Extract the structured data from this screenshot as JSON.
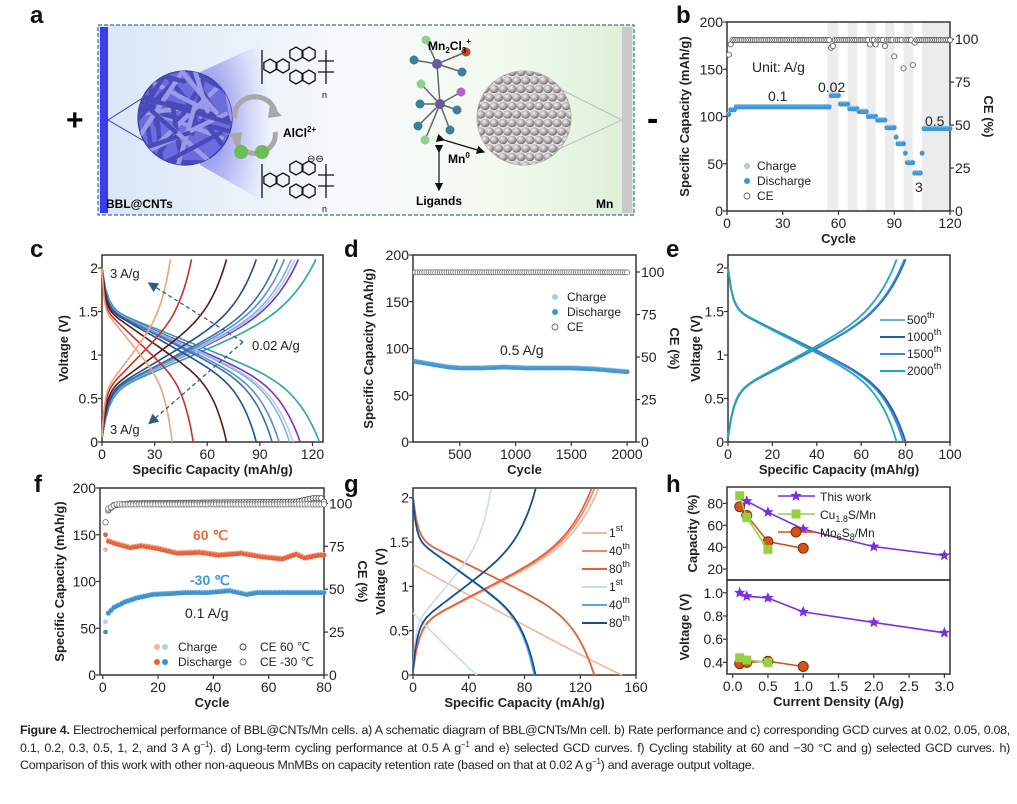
{
  "panel_labels": {
    "a": "a",
    "b": "b",
    "c": "c",
    "d": "d",
    "e": "e",
    "f": "f",
    "g": "g",
    "h": "h"
  },
  "schematic": {
    "plus": "+",
    "minus": "-",
    "cathode_label": "BBL@CNTs",
    "anode_label": "Mn",
    "ion_label": "AlCl",
    "ion_sup": "2+",
    "polymer_repeat": "n",
    "polymer_charge": "⊖⊖",
    "complex_label": {
      "a": "Mn",
      "b": "2",
      "c": "Cl",
      "d": "3",
      "e": "+"
    },
    "mn0_label": "Mn",
    "mn0_sup": "0",
    "ligands_label": "Ligands",
    "colors": {
      "cathode_bar": "#3b3bf0",
      "nanotube": "#5a5ad6",
      "ion": "#6cbc58",
      "anode_bar": "#c9c9c9"
    }
  },
  "chart_data": [
    {
      "panel": "b",
      "type": "scatter",
      "xlabel": "Cycle",
      "ylabel": "Specific Capacity (mAh/g)",
      "y2label": "CE (%)",
      "xlim": [
        0,
        120
      ],
      "ylim": [
        0,
        200
      ],
      "y2lim": [
        0,
        110
      ],
      "xticks": [
        0,
        30,
        60,
        90,
        120
      ],
      "yticks": [
        0,
        50,
        100,
        150,
        200
      ],
      "y2ticks": [
        0,
        25,
        50,
        75,
        100
      ],
      "shaded_cycle_ranges": [
        [
          54,
          60
        ],
        [
          65,
          70
        ],
        [
          75,
          80
        ],
        [
          85,
          90
        ],
        [
          95,
          100
        ],
        [
          105,
          120
        ]
      ],
      "capacity_segments": [
        [
          1,
          1,
          102
        ],
        [
          2,
          4,
          107
        ],
        [
          5,
          55,
          110
        ],
        [
          56,
          60,
          122
        ],
        [
          61,
          65,
          113
        ],
        [
          66,
          70,
          108
        ],
        [
          71,
          75,
          105
        ],
        [
          76,
          80,
          100
        ],
        [
          81,
          85,
          96
        ],
        [
          86,
          90,
          88
        ],
        [
          91,
          91,
          78
        ],
        [
          92,
          95,
          71
        ],
        [
          96,
          96,
          61
        ],
        [
          97,
          100,
          51
        ],
        [
          101,
          104,
          40
        ],
        [
          105,
          105,
          61
        ],
        [
          106,
          120,
          87
        ]
      ],
      "ce_default": 99.5,
      "ce_outliers": [
        [
          1,
          91
        ],
        [
          2,
          97
        ],
        [
          56,
          95
        ],
        [
          57,
          96
        ],
        [
          77,
          97
        ],
        [
          80,
          97
        ],
        [
          85,
          96
        ],
        [
          90,
          90
        ],
        [
          95,
          83
        ],
        [
          100,
          85
        ],
        [
          101,
          98
        ]
      ],
      "series": [
        {
          "name": "Charge",
          "color": "#a9cdee"
        },
        {
          "name": "Discharge",
          "color": "#3f97d4"
        },
        {
          "name": "CE",
          "color": "#555555"
        }
      ],
      "annotations": [
        "Unit: A/g",
        "0.1",
        "0.02",
        "0.5",
        "3"
      ]
    },
    {
      "panel": "c",
      "type": "line",
      "xlabel": "Specific Capacity (mAh/g)",
      "ylabel": "Voltage (V)",
      "xlim": [
        0,
        126
      ],
      "ylim": [
        0,
        2.15
      ],
      "xticks": [
        0,
        30,
        60,
        90,
        120
      ],
      "yticks": [
        0,
        0.5,
        1.0,
        1.5,
        2.0
      ],
      "curves": [
        {
          "rate": "0.02",
          "charge_max": 122,
          "discharge_max": 124,
          "color": "#2aa79e"
        },
        {
          "rate": "0.05",
          "charge_max": 112,
          "discharge_max": 113,
          "color": "#7b2fd6"
        },
        {
          "rate": "0.08",
          "charge_max": 110,
          "discharge_max": 109,
          "color": "#b3d0ea"
        },
        {
          "rate": "0.1",
          "charge_max": 108,
          "discharge_max": 107,
          "color": "#86b2da"
        },
        {
          "rate": "0.2",
          "charge_max": 104,
          "discharge_max": 101,
          "color": "#5b8fc6"
        },
        {
          "rate": "0.3",
          "charge_max": 100,
          "discharge_max": 97,
          "color": "#3a70b2"
        },
        {
          "rate": "0.5",
          "charge_max": 88,
          "discharge_max": 88,
          "color": "#1f4f8f"
        },
        {
          "rate": "1",
          "charge_max": 71,
          "discharge_max": 71,
          "color": "#5c1818"
        },
        {
          "rate": "2",
          "charge_max": 51,
          "discharge_max": 52,
          "color": "#c8302e"
        },
        {
          "rate": "3",
          "charge_max": 39,
          "discharge_max": 40,
          "color": "#f2a27c"
        }
      ],
      "annotations": [
        "3 A/g",
        "3 A/g",
        "0.02 A/g"
      ]
    },
    {
      "panel": "d",
      "type": "scatter",
      "xlabel": "Cycle",
      "ylabel": "Specific Capacity (mAh/g)",
      "y2label": "CE (%)",
      "xlim": [
        80,
        2080
      ],
      "ylim": [
        0,
        200
      ],
      "y2lim": [
        0,
        110
      ],
      "xticks": [
        500,
        1000,
        1500,
        2000
      ],
      "yticks": [
        0,
        50,
        100,
        150,
        200
      ],
      "y2ticks": [
        0,
        25,
        50,
        75,
        100
      ],
      "capacity_points": [
        [
          100,
          86
        ],
        [
          200,
          84
        ],
        [
          300,
          82
        ],
        [
          400,
          80
        ],
        [
          500,
          79
        ],
        [
          700,
          79
        ],
        [
          900,
          80
        ],
        [
          1100,
          79
        ],
        [
          1300,
          79
        ],
        [
          1500,
          79
        ],
        [
          1700,
          78
        ],
        [
          1900,
          76
        ],
        [
          2000,
          75
        ]
      ],
      "ce_value": 99.8,
      "series": [
        {
          "name": "Charge",
          "color": "#a9cdee"
        },
        {
          "name": "Discharge",
          "color": "#3f97d4"
        },
        {
          "name": "CE",
          "color": "#555555"
        }
      ],
      "annotations": [
        "0.5 A/g"
      ]
    },
    {
      "panel": "e",
      "type": "line",
      "xlabel": "Specific Capacity (mAh/g)",
      "ylabel": "Voltage (V)",
      "xlim": [
        0,
        100
      ],
      "ylim": [
        0,
        2.15
      ],
      "xticks": [
        0,
        20,
        40,
        60,
        80,
        100
      ],
      "yticks": [
        0,
        0.5,
        1.0,
        1.5,
        2.0
      ],
      "curves": [
        {
          "name": {
            "n": "500",
            "s": "th"
          },
          "charge_max": 80,
          "discharge_max": 80,
          "color": "#6aaee0"
        },
        {
          "name": {
            "n": "1000",
            "s": "th"
          },
          "charge_max": 80,
          "discharge_max": 80,
          "color": "#1f5fb0"
        },
        {
          "name": {
            "n": "1500",
            "s": "th"
          },
          "charge_max": 79.5,
          "discharge_max": 79,
          "color": "#3a86d6"
        },
        {
          "name": {
            "n": "2000",
            "s": "th"
          },
          "charge_max": 76,
          "discharge_max": 76,
          "color": "#22a8b4"
        }
      ]
    },
    {
      "panel": "f",
      "type": "scatter",
      "xlabel": "Cycle",
      "ylabel": "Specific Capacity (mAh/g)",
      "y2label": "CE (%)",
      "xlim": [
        -1,
        80
      ],
      "ylim": [
        0,
        200
      ],
      "y2lim": [
        0,
        109
      ],
      "xticks": [
        0,
        20,
        40,
        60,
        80
      ],
      "yticks": [
        0,
        50,
        100,
        150,
        200
      ],
      "y2ticks": [
        0,
        25,
        50,
        75,
        100
      ],
      "series": [
        {
          "name": "60 ℃ discharge",
          "color": "#e8603c",
          "points": [
            [
              1,
              150
            ],
            [
              2,
              143
            ],
            [
              5,
              140
            ],
            [
              10,
              136
            ],
            [
              14,
              138
            ],
            [
              20,
              135
            ],
            [
              27,
              130
            ],
            [
              35,
              131
            ],
            [
              42,
              128
            ],
            [
              50,
              130
            ],
            [
              58,
              126
            ],
            [
              65,
              124
            ],
            [
              70,
              129
            ],
            [
              73,
              125
            ],
            [
              78,
              128
            ],
            [
              80,
              128
            ]
          ]
        },
        {
          "name": "60 ℃ charge",
          "color": "#f4b49a",
          "first_value": 134
        },
        {
          "name": "-30 ℃ discharge",
          "color": "#3d92d0",
          "points": [
            [
              1,
              46
            ],
            [
              2,
              66
            ],
            [
              4,
              72
            ],
            [
              8,
              78
            ],
            [
              12,
              82
            ],
            [
              18,
              86
            ],
            [
              25,
              87
            ],
            [
              30,
              88
            ],
            [
              38,
              88
            ],
            [
              46,
              90
            ],
            [
              52,
              86
            ],
            [
              56,
              88
            ],
            [
              65,
              88
            ],
            [
              80,
              88
            ]
          ]
        },
        {
          "name": "-30 ℃ charge",
          "color": "#b0d2f0",
          "first_value": 57
        },
        {
          "name": "CE 60 ℃",
          "color": "#555555",
          "points": [
            [
              1,
              89
            ],
            [
              2,
              96
            ],
            [
              4,
              99
            ],
            [
              10,
              100
            ],
            [
              70,
              101
            ],
            [
              76,
              103
            ],
            [
              79,
              103
            ],
            [
              80,
              101
            ]
          ]
        },
        {
          "name": "CE -30 ℃",
          "color": "#888888",
          "points": [
            [
              1,
              89
            ],
            [
              2,
              97
            ],
            [
              5,
              99.5
            ],
            [
              80,
              99.5
            ]
          ]
        }
      ],
      "annotations": {
        "hot": "60 ℃",
        "cold": "-30 ℃",
        "rate": "0.1 A/g"
      },
      "legend": {
        "charge": "Charge",
        "discharge": "Discharge",
        "ce60": "CE 60 ℃",
        "ce30": "CE -30 ℃"
      }
    },
    {
      "panel": "g",
      "type": "line",
      "xlabel": "Specific Capacity (mAh/g)",
      "ylabel": "Voltage (V)",
      "xlim": [
        0,
        160
      ],
      "ylim": [
        0,
        2.11
      ],
      "xticks": [
        0,
        40,
        80,
        120,
        160
      ],
      "yticks": [
        0,
        0.5,
        1.0,
        1.5,
        2.0
      ],
      "curves": [
        {
          "name": {
            "n": "1",
            "s": "st"
          },
          "temperature": "60",
          "charge_max": 133,
          "discharge_max": 150,
          "discharge_start": 1.25,
          "color": "#f6b89c"
        },
        {
          "name": {
            "n": "40",
            "s": "th"
          },
          "temperature": "60",
          "charge_max": 130,
          "discharge_max": 130,
          "color": "#ee8a68"
        },
        {
          "name": {
            "n": "80",
            "s": "th"
          },
          "temperature": "60",
          "charge_max": 128,
          "discharge_max": 130,
          "color": "#e2603e"
        },
        {
          "name": {
            "n": "1",
            "s": "st"
          },
          "temperature": "-30",
          "charge_max": 56,
          "discharge_max": 46,
          "discharge_start": 0.7,
          "color": "#c9dff2"
        },
        {
          "name": {
            "n": "40",
            "s": "th"
          },
          "temperature": "-30",
          "charge_max": 88,
          "discharge_max": 87,
          "color": "#5ea4d8"
        },
        {
          "name": {
            "n": "80",
            "s": "th"
          },
          "temperature": "-30",
          "charge_max": 88,
          "discharge_max": 88,
          "color": "#154f8e"
        }
      ]
    },
    {
      "panel": "h",
      "type": "line",
      "xlabel": "Current Density (A/g)",
      "ylabel_top": "Capacity (%)",
      "ylabel_bottom": "Voltage (V)",
      "xlim": [
        -0.08,
        3.08
      ],
      "ylim_top": [
        10,
        95
      ],
      "ylim_bottom": [
        0.3,
        1.11
      ],
      "xticks": [
        0.0,
        0.5,
        1.0,
        1.5,
        2.0,
        2.5,
        3.0
      ],
      "xtick_labels": [
        "0.0",
        "0.5",
        "1.0",
        "1.5",
        "2.0",
        "2.5",
        "3.0"
      ],
      "yticks_top": [
        20,
        40,
        60,
        80
      ],
      "yticks_bottom": [
        0.4,
        0.6,
        0.8,
        1.0
      ],
      "ytick_labels_bottom": [
        "0.4",
        "0.6",
        "0.8",
        "1.0"
      ],
      "series": [
        {
          "name": {
            "a": "This work",
            "b": "",
            "c": ""
          },
          "marker": "star",
          "color": "#7a2ee0",
          "capacity": [
            [
              0.2,
              82
            ],
            [
              0.5,
              72
            ],
            [
              1.0,
              56.5
            ],
            [
              2.0,
              40.5
            ],
            [
              3.0,
              32.5
            ]
          ],
          "voltage": [
            [
              0.1,
              1.0
            ],
            [
              0.2,
              0.97
            ],
            [
              0.5,
              0.955
            ],
            [
              1.0,
              0.835
            ],
            [
              2.0,
              0.745
            ],
            [
              3.0,
              0.655
            ]
          ]
        },
        {
          "name": {
            "a": "Cu",
            "b": "1.8",
            "c": "S/Mn"
          },
          "marker": "square",
          "color": "#96d040",
          "capacity": [
            [
              0.1,
              87
            ],
            [
              0.2,
              67
            ],
            [
              0.5,
              38
            ]
          ],
          "voltage": [
            [
              0.1,
              0.44
            ],
            [
              0.2,
              0.42
            ],
            [
              0.5,
              0.4
            ]
          ]
        },
        {
          "name": {
            "a": "Mo",
            "b": "6",
            "c": "S",
            "d": "8",
            "e": "/Mn"
          },
          "marker": "circle",
          "color": "#d2541c",
          "capacity": [
            [
              0.1,
              77
            ],
            [
              0.2,
              69
            ],
            [
              0.5,
              45
            ],
            [
              1.0,
              39
            ]
          ],
          "voltage": [
            [
              0.1,
              0.39
            ],
            [
              0.2,
              0.4
            ],
            [
              0.5,
              0.41
            ],
            [
              1.0,
              0.365
            ]
          ]
        }
      ]
    }
  ],
  "caption": {
    "segments": [
      [
        "Figure 4.",
        "b"
      ],
      [
        " Electrochemical performance of BBL@CNTs/Mn cells. a) A schematic diagram of BBL@CNTs/Mn cell. b) Rate performance and c) corresponding GCD curves at 0.02, 0.05, 0.08, 0.1, 0.2, 0.3, 0.5, 1, 2, and 3 A g",
        ""
      ],
      [
        "−1",
        "sup"
      ],
      [
        "). d) Long-term cycling performance at 0.5 A g",
        ""
      ],
      [
        "−1",
        "sup"
      ],
      [
        " and e) selected GCD curves. f) Cycling stability at 60 and −30 °C and g) selected GCD curves. h) Comparison of this work with other non-aqueous MnMBs on capacity retention rate (based on that at 0.02 A g",
        ""
      ],
      [
        "−1",
        "sup"
      ],
      [
        ") and average output voltage.",
        ""
      ]
    ]
  }
}
